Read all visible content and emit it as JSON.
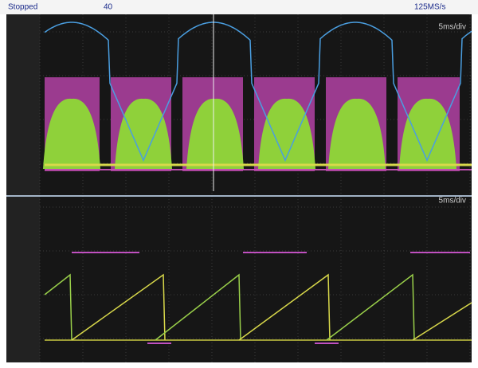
{
  "status_bar": {
    "state": "Stopped",
    "trigger_level": "40",
    "sample_rate": "125MS/s"
  },
  "upper_panel": {
    "timebase": "5ms/div"
  },
  "lower_panel": {
    "timebase": "5ms/div"
  }
}
